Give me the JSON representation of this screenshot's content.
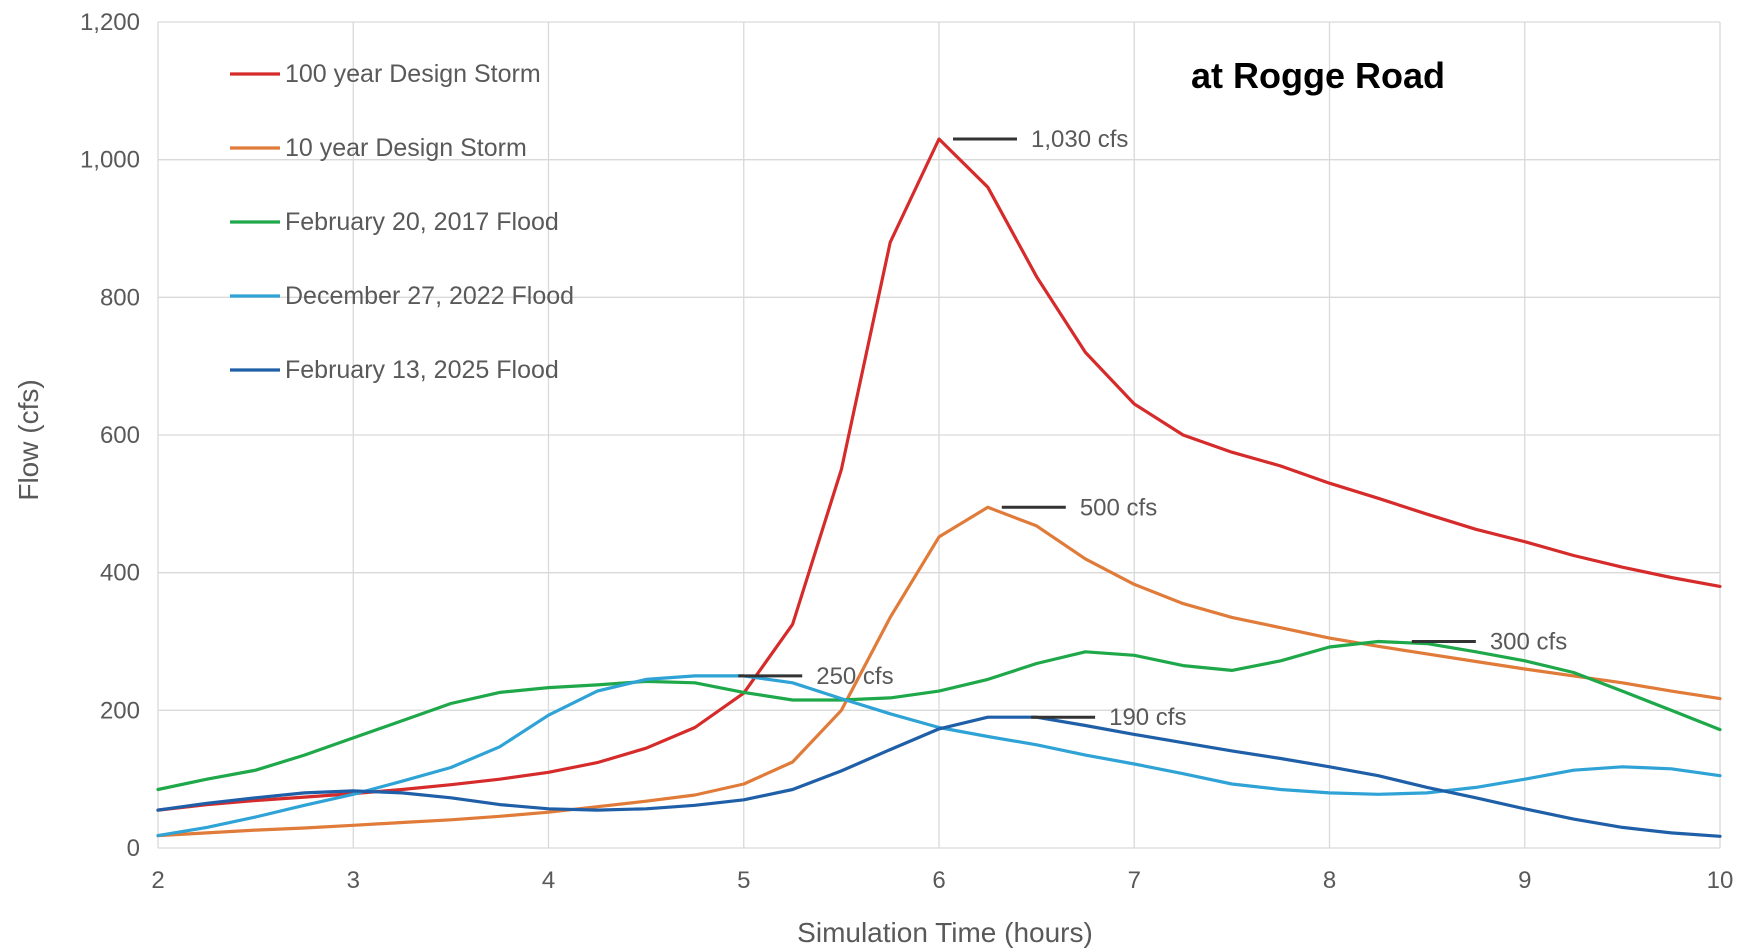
{
  "chart_data": {
    "type": "line",
    "title": "at Rogge Road",
    "xlabel": "Simulation Time (hours)",
    "ylabel": "Flow (cfs)",
    "xlim": [
      2,
      10
    ],
    "ylim": [
      0,
      1200
    ],
    "x_ticks": [
      2,
      3,
      4,
      5,
      6,
      7,
      8,
      9,
      10
    ],
    "y_ticks": [
      0,
      200,
      400,
      600,
      800,
      1000,
      1200
    ],
    "y_tick_labels": [
      "0",
      "200",
      "400",
      "600",
      "800",
      "1,000",
      "1,200"
    ],
    "grid": true,
    "legend_position": "top-left",
    "x": [
      2,
      2.25,
      2.5,
      2.75,
      3,
      3.25,
      3.5,
      3.75,
      4,
      4.25,
      4.5,
      4.75,
      5,
      5.25,
      5.5,
      5.75,
      6,
      6.25,
      6.5,
      6.75,
      7,
      7.25,
      7.5,
      7.75,
      8,
      8.25,
      8.5,
      8.75,
      9,
      9.25,
      9.5,
      9.75,
      10
    ],
    "series": [
      {
        "name": "100 year Design Storm",
        "color": "#d62b2b",
        "values": [
          55,
          63,
          69,
          74,
          79,
          85,
          92,
          100,
          110,
          124,
          145,
          175,
          225,
          325,
          550,
          880,
          1030,
          960,
          830,
          720,
          645,
          600,
          575,
          555,
          530,
          508,
          485,
          463,
          445,
          425,
          408,
          393,
          380
        ]
      },
      {
        "name": "10 year Design Storm",
        "color": "#e07b39",
        "values": [
          18,
          22,
          26,
          29,
          33,
          37,
          41,
          46,
          52,
          60,
          68,
          77,
          93,
          125,
          200,
          335,
          452,
          495,
          468,
          420,
          383,
          355,
          335,
          320,
          305,
          293,
          282,
          271,
          260,
          250,
          240,
          228,
          217
        ]
      },
      {
        "name": "February 20, 2017 Flood",
        "color": "#1fa84a",
        "values": [
          85,
          100,
          113,
          135,
          160,
          185,
          210,
          226,
          233,
          237,
          242,
          240,
          226,
          215,
          215,
          218,
          228,
          245,
          268,
          285,
          280,
          265,
          258,
          272,
          292,
          300,
          297,
          285,
          272,
          255,
          228,
          200,
          172
        ]
      },
      {
        "name": "December 27, 2022 Flood",
        "color": "#2fa3d6",
        "values": [
          18,
          30,
          45,
          62,
          78,
          97,
          117,
          147,
          193,
          228,
          245,
          250,
          250,
          240,
          217,
          195,
          175,
          162,
          150,
          135,
          122,
          108,
          93,
          85,
          80,
          78,
          80,
          88,
          100,
          113,
          118,
          115,
          105
        ]
      },
      {
        "name": "February 13, 2025 Flood",
        "color": "#1f5fa8",
        "values": [
          55,
          65,
          73,
          80,
          83,
          80,
          73,
          63,
          57,
          55,
          57,
          62,
          70,
          85,
          112,
          143,
          173,
          190,
          190,
          178,
          165,
          153,
          141,
          130,
          118,
          105,
          88,
          73,
          57,
          42,
          30,
          22,
          17
        ]
      }
    ],
    "annotations": [
      {
        "text": "1,030 cfs",
        "x": 6.0,
        "y": 1030
      },
      {
        "text": "500 cfs",
        "x": 6.25,
        "y": 495
      },
      {
        "text": "250 cfs",
        "x": 4.9,
        "y": 250
      },
      {
        "text": "190 cfs",
        "x": 6.4,
        "y": 190
      },
      {
        "text": "300 cfs",
        "x": 8.35,
        "y": 300
      }
    ]
  }
}
